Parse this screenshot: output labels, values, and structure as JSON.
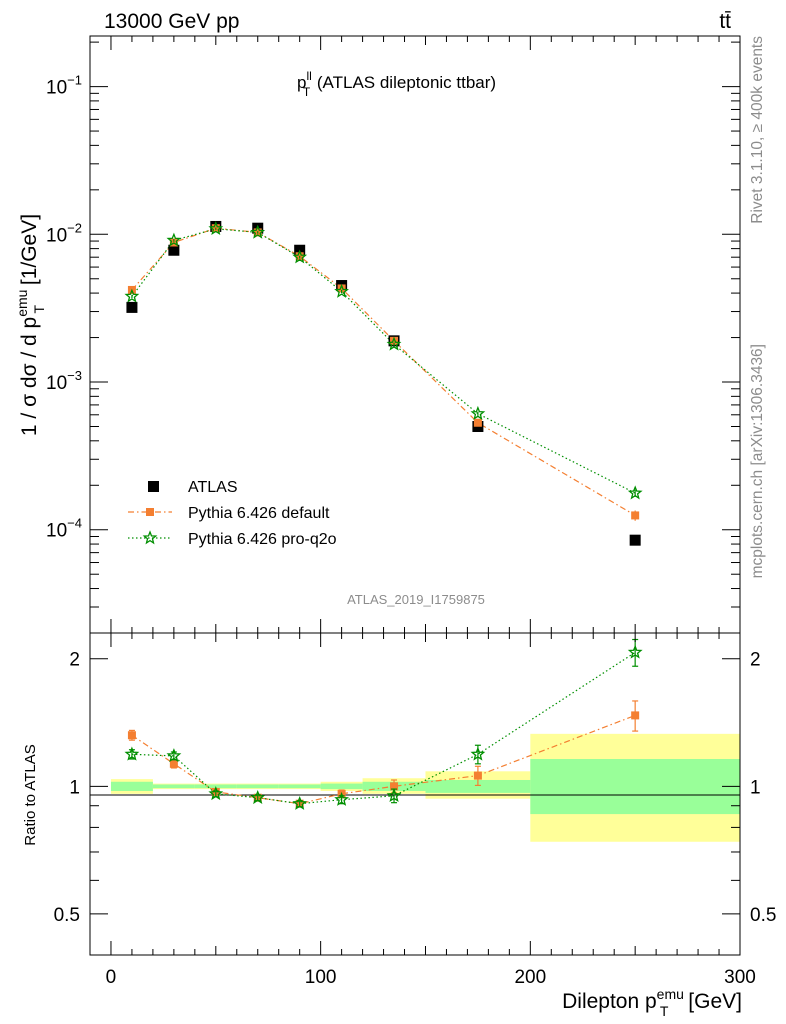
{
  "header": {
    "energy_label": "13000 GeV pp",
    "process_label": "tt̄"
  },
  "side_labels": {
    "rivet": "Rivet 3.1.10, ≥ 400k events",
    "mcplots": "mcplots.cern.ch [arXiv:1306.3436]"
  },
  "chart_data": [
    {
      "type": "scatter",
      "title_main": "p",
      "title_sup": "ll",
      "title_sub": "T",
      "title_rest": " (ATLAS dileptonic ttbar)",
      "analysis_id": "ATLAS_2019_I1759875",
      "ylabel": "1 / σ  dσ / d p_T^emu [1/GeV]",
      "yscale": "log",
      "ylim": [
        2e-05,
        0.22
      ],
      "xlim": [
        -10,
        300
      ],
      "yticks": [
        {
          "value": 0.1,
          "base": "10",
          "exp": "−1"
        },
        {
          "value": 0.01,
          "base": "10",
          "exp": "−2"
        },
        {
          "value": 0.001,
          "base": "10",
          "exp": "−3"
        },
        {
          "value": 0.0001,
          "base": "10",
          "exp": "−4"
        }
      ],
      "x_bins": [
        [
          0,
          20
        ],
        [
          20,
          40
        ],
        [
          40,
          60
        ],
        [
          60,
          80
        ],
        [
          80,
          100
        ],
        [
          100,
          120
        ],
        [
          120,
          150
        ],
        [
          150,
          200
        ],
        [
          200,
          300
        ]
      ],
      "series": [
        {
          "name": "ATLAS",
          "color": "#000000",
          "marker": "square",
          "x": [
            10,
            30,
            50,
            70,
            90,
            110,
            135,
            175,
            250
          ],
          "y": [
            0.0032,
            0.0078,
            0.0113,
            0.011,
            0.0078,
            0.0045,
            0.0019,
            0.0005,
            8.5e-05
          ],
          "err": [
            0,
            0,
            0,
            0,
            0,
            0,
            0,
            0,
            0
          ]
        },
        {
          "name": "Pythia 6.426 default",
          "color": "#f47f31",
          "marker": "square-small",
          "line": "dashdot",
          "x": [
            10,
            30,
            50,
            70,
            90,
            110,
            135,
            175,
            250
          ],
          "y": [
            0.0042,
            0.0088,
            0.011,
            0.0103,
            0.0071,
            0.0043,
            0.0019,
            0.00053,
            0.000125
          ],
          "err": [
            0.00015,
            0.0002,
            0.0002,
            0.0002,
            0.00015,
            0.0001,
            5e-05,
            2e-05,
            1e-05
          ]
        },
        {
          "name": "Pythia 6.426 pro-q2o",
          "color": "#008f00",
          "marker": "star",
          "line": "dotted",
          "x": [
            10,
            30,
            50,
            70,
            90,
            110,
            135,
            175,
            250
          ],
          "y": [
            0.0038,
            0.0091,
            0.0109,
            0.0103,
            0.007,
            0.0041,
            0.0018,
            0.00061,
            0.000177
          ],
          "err": [
            0.0001,
            0.0002,
            0.0002,
            0.0002,
            0.00015,
            0.0001,
            5e-05,
            2e-05,
            1e-05
          ]
        }
      ]
    },
    {
      "type": "scatter",
      "ylabel": "Ratio to ATLAS",
      "xlabel_main": "Dilepton p",
      "xlabel_sup": "emu",
      "xlabel_sub": "T",
      "xlabel_unit": " [GeV]",
      "yscale": "log",
      "ylim": [
        0.4,
        2.3
      ],
      "xlim": [
        -10,
        300
      ],
      "yticks": [
        {
          "value": 0.5,
          "label": "0.5"
        },
        {
          "value": 1,
          "label": "1"
        },
        {
          "value": 2,
          "label": "2"
        }
      ],
      "xticks": [
        {
          "value": 0,
          "label": "0"
        },
        {
          "value": 100,
          "label": "100"
        },
        {
          "value": 200,
          "label": "200"
        },
        {
          "value": 300,
          "label": "300"
        }
      ],
      "uncertainty_bands": {
        "x_bins": [
          [
            0,
            20
          ],
          [
            20,
            40
          ],
          [
            40,
            60
          ],
          [
            60,
            80
          ],
          [
            80,
            100
          ],
          [
            100,
            120
          ],
          [
            120,
            150
          ],
          [
            150,
            200
          ],
          [
            200,
            300
          ]
        ],
        "stat_lo": [
          0.975,
          0.99,
          0.99,
          0.99,
          0.99,
          0.985,
          0.975,
          0.965,
          0.86
        ],
        "stat_hi": [
          1.025,
          1.01,
          1.01,
          1.01,
          1.01,
          1.015,
          1.025,
          1.035,
          1.16
        ],
        "total_lo": [
          0.96,
          0.985,
          0.985,
          0.985,
          0.985,
          0.975,
          0.96,
          0.935,
          0.74
        ],
        "total_hi": [
          1.04,
          1.015,
          1.015,
          1.015,
          1.015,
          1.025,
          1.045,
          1.085,
          1.33
        ],
        "stat_color": "#99ff99",
        "total_color": "#ffff99"
      },
      "series": [
        {
          "name": "Pythia 6.426 default",
          "color": "#f47f31",
          "marker": "square-small",
          "line": "dashdot",
          "x": [
            10,
            30,
            50,
            70,
            90,
            110,
            135,
            175,
            250
          ],
          "y": [
            1.32,
            1.13,
            0.97,
            0.94,
            0.91,
            0.96,
            1.0,
            1.06,
            1.47
          ],
          "err": [
            0.035,
            0.025,
            0.015,
            0.015,
            0.015,
            0.02,
            0.035,
            0.055,
            0.12
          ]
        },
        {
          "name": "Pythia 6.426 pro-q2o",
          "color": "#008f00",
          "marker": "star",
          "line": "dotted",
          "x": [
            10,
            30,
            50,
            70,
            90,
            110,
            135,
            175,
            250
          ],
          "y": [
            1.19,
            1.18,
            0.96,
            0.94,
            0.91,
            0.93,
            0.95,
            1.19,
            2.07
          ],
          "err": [
            0.03,
            0.025,
            0.015,
            0.015,
            0.015,
            0.02,
            0.035,
            0.06,
            0.15
          ]
        }
      ]
    }
  ]
}
